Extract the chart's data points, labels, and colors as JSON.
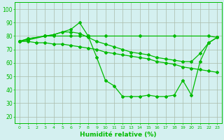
{
  "line1_x": [
    0,
    1,
    3,
    4,
    6,
    7,
    8,
    9,
    10,
    11,
    12,
    13,
    14,
    15,
    16,
    17,
    18,
    19,
    20,
    21,
    22,
    23
  ],
  "line1_y": [
    76,
    78,
    80,
    81,
    85,
    90,
    80,
    64,
    47,
    43,
    35,
    35,
    35,
    36,
    35,
    35,
    36,
    47,
    36,
    61,
    75,
    79
  ],
  "line2_x": [
    0,
    1,
    3,
    4,
    6,
    7,
    8,
    10,
    14,
    18,
    22,
    23
  ],
  "line2_y": [
    76,
    78,
    80,
    80,
    80,
    80,
    80,
    80,
    80,
    80,
    80,
    79
  ],
  "line3_x": [
    0,
    1,
    3,
    4,
    5,
    6,
    7,
    8,
    9,
    10,
    11,
    12,
    13,
    14,
    15,
    16,
    17,
    18,
    19,
    20,
    21,
    22,
    23
  ],
  "line3_y": [
    76,
    77,
    80,
    81,
    83,
    83,
    82,
    79,
    76,
    74,
    72,
    70,
    68,
    67,
    66,
    64,
    63,
    62,
    61,
    61,
    67,
    75,
    79
  ],
  "line4_x": [
    0,
    1,
    2,
    3,
    4,
    5,
    6,
    7,
    8,
    9,
    10,
    11,
    12,
    13,
    14,
    15,
    16,
    17,
    18,
    19,
    20,
    21,
    22,
    23
  ],
  "line4_y": [
    76,
    76,
    75,
    75,
    74,
    74,
    73,
    72,
    71,
    70,
    68,
    67,
    66,
    65,
    64,
    63,
    61,
    60,
    59,
    57,
    56,
    55,
    54,
    53
  ],
  "color": "#00bb00",
  "bg_color": "#d4f0f0",
  "grid_color": "#aabbaa",
  "xlabel": "Humidité relative (%)",
  "yticks": [
    20,
    30,
    40,
    50,
    60,
    70,
    80,
    90,
    100
  ],
  "xlim": [
    -0.5,
    23.5
  ],
  "ylim": [
    15,
    105
  ],
  "figsize": [
    3.2,
    2.0
  ],
  "dpi": 100
}
